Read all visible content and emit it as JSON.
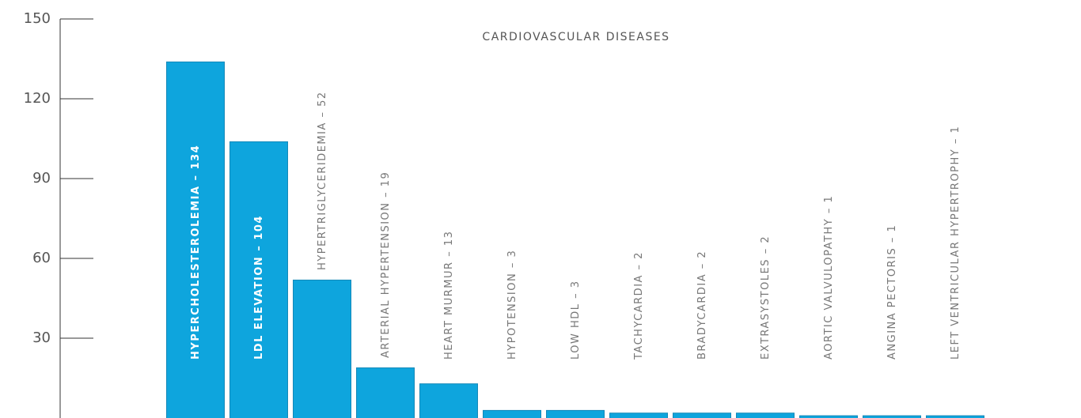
{
  "chart_data": {
    "type": "bar",
    "title": "CARDIOVASCULAR DISEASES",
    "categories": [
      "HYPERCHOLESTEROLEMIA – 134",
      "LDL ELEVATION – 104",
      "HYPERTRIGLYCERIDEMIA – 52",
      "ARTERIAL HYPERTENSION – 19",
      "HEART MURMUR – 13",
      "HYPOTENSION – 3",
      "LOW HDL – 3",
      "TACHYCARDIA – 2",
      "BRADYCARDIA – 2",
      "EXTRASYSTOLES – 2",
      "AORTIC VALVULOPATHY – 1",
      "ANGINA PECTORIS – 1",
      "LEFT VENTRICULAR HYPERTROPHY – 1"
    ],
    "values": [
      134,
      104,
      52,
      19,
      13,
      3,
      3,
      2,
      2,
      2,
      1,
      1,
      1
    ],
    "color": "#0ea5dd",
    "ylim": [
      0,
      150
    ],
    "yticks": [
      30,
      60,
      90,
      120,
      150
    ]
  }
}
